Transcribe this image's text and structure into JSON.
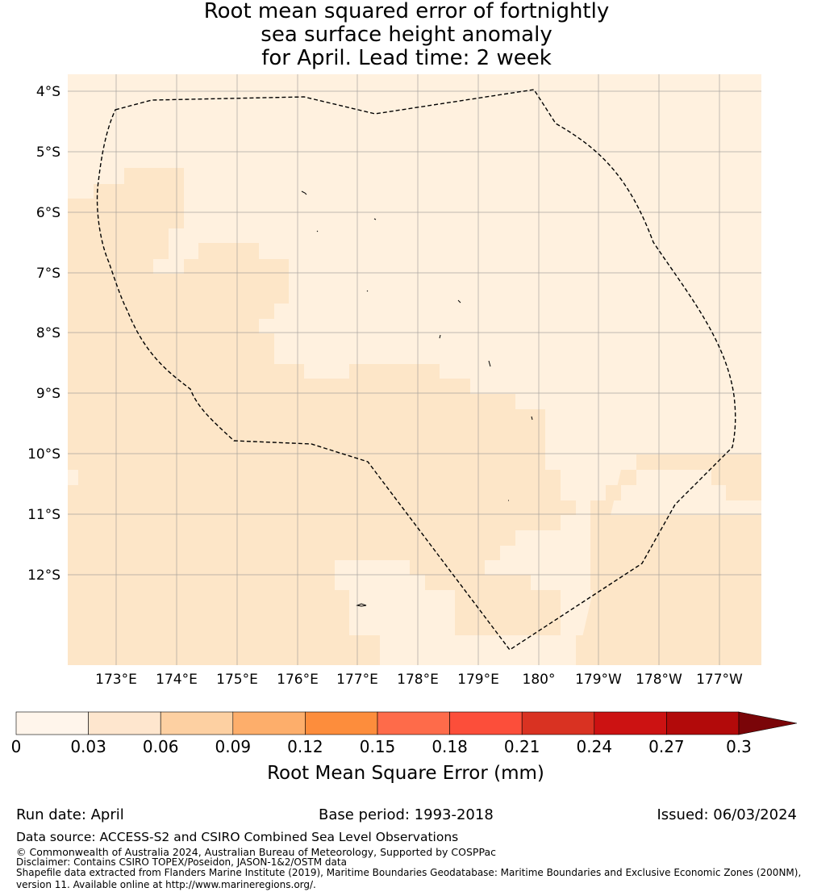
{
  "title": {
    "line1": "Root mean squared error of fortnightly",
    "line2": "sea surface height anomaly",
    "line3": "for April. Lead time: 2 week"
  },
  "map": {
    "lat_labels": [
      "4°S",
      "5°S",
      "6°S",
      "7°S",
      "8°S",
      "9°S",
      "10°S",
      "11°S",
      "12°S"
    ],
    "lon_labels": [
      "173°E",
      "174°E",
      "175°E",
      "176°E",
      "177°E",
      "178°E",
      "179°E",
      "180°",
      "179°W",
      "178°W",
      "177°W"
    ],
    "field_colors": {
      "low": "#fff1df",
      "mid": "#fde6c8"
    }
  },
  "colorbar": {
    "tick_labels": [
      "0",
      "0.03",
      "0.06",
      "0.09",
      "0.12",
      "0.15",
      "0.18",
      "0.21",
      "0.24",
      "0.27",
      "0.3"
    ],
    "colors": [
      "#fff5eb",
      "#fee6ce",
      "#fdd0a2",
      "#fdae6b",
      "#fd8d3c",
      "#fe6b4a",
      "#fc4e3a",
      "#d93222",
      "#cc1212",
      "#b20a0a"
    ],
    "extend_color": "#7a0508",
    "label": "Root Mean Square Error (mm)"
  },
  "footer": {
    "run_date": "Run date: April",
    "base_period": "Base period: 1993-2018",
    "issued": "Issued: 06/03/2024",
    "data_source": "Data source: ACCESS-S2 and CSIRO Combined Sea Level Observations",
    "copyright": "© Commonwealth of Australia 2024, Australian Bureau of Meteorology, Supported by COSPPac",
    "disclaimer": "Disclaimer: Contains CSIRO TOPEX/Poseidon, JASON-1&2/OSTM data",
    "shapefile": "Shapefile data extracted from Flanders Marine Institute (2019), Maritime Boundaries Geodatabase: Maritime Boundaries and Exclusive Economic Zones (200NM),",
    "shapefile2": "version 11. Available online at http://www.marineregions.org/."
  }
}
